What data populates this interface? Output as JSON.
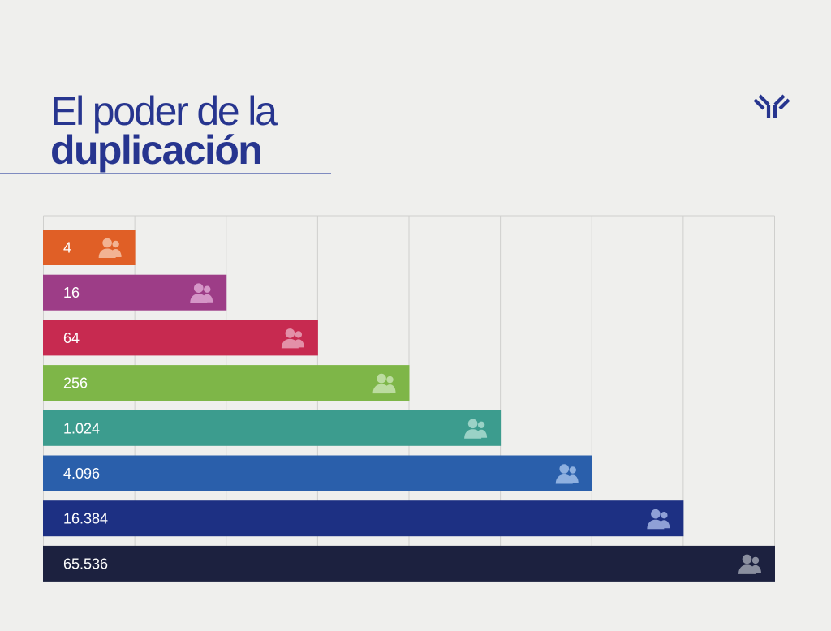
{
  "header": {
    "title_line1": "El poder de la",
    "title_line2": "duplicación",
    "logo_icon": "antibody-y-icon"
  },
  "colors": {
    "title": "#27358f",
    "grid": "#cfcfcd",
    "background": "#efefed"
  },
  "chart_data": {
    "type": "bar",
    "orientation": "horizontal",
    "title": "El poder de la duplicación",
    "xlabel": "",
    "ylabel": "",
    "x_scale": "log4",
    "xlim": [
      1,
      65536
    ],
    "grid": true,
    "legend": "none",
    "categories": [
      "4",
      "16",
      "64",
      "256",
      "1.024",
      "4.096",
      "16.384",
      "65.536"
    ],
    "values": [
      4,
      16,
      64,
      256,
      1024,
      4096,
      16384,
      65536
    ],
    "labels": [
      "4",
      "16",
      "64",
      "256",
      "1.024",
      "4.096",
      "16.384",
      "65.536"
    ],
    "bar_colors": [
      "#e05f26",
      "#9d3d87",
      "#c72a50",
      "#7eb648",
      "#3c9c8e",
      "#2a5fab",
      "#1d3083",
      "#1c213f"
    ],
    "icon_colors": [
      "#f2b393",
      "#d596c7",
      "#e390a8",
      "#bcdca0",
      "#9ad2c6",
      "#8eb0e0",
      "#8fa0d6",
      "#8a8f9f"
    ],
    "bar_icon": "users-group-icon"
  }
}
